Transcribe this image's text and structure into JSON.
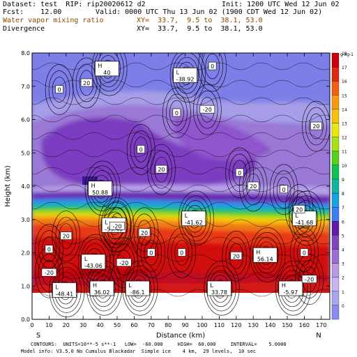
{
  "header": {
    "dataset": "Dataset: test  RIP: rip20020612 d2",
    "init": "Init: 1200 UTC Wed 12 Jun 02",
    "fcst": "Fcst:    12.00",
    "valid": "Valid: 0000 UTC Thu 13 Jun 02 (1900 CDT Wed 12 Jun 02)",
    "field1": "Water vapor mixing ratio",
    "xy1": "XY=  33.7,  9.5 to  38.1, 53.0",
    "field2": "Divergence",
    "xy2": "XY=  33.7,  9.5 to  38.1, 53.0"
  },
  "footer": {
    "line1": "CONTOURS:  UNITS=10**-5 s**-1   LOW=  -60.000     HIGH=  60.000     INTERVAL=    5.0000",
    "line2": "Model info: V3.5.0 No Cumulus Blackadar  Simple ice    4 km,  29 levels,  10 sec"
  },
  "colors": {
    "colorbar": [
      "#8a8cf0",
      "#a8a4ee",
      "#c8b4f0",
      "#b89ae2",
      "#9a6ed2",
      "#7e44c0",
      "#621aa8",
      "#3c7ef0",
      "#18a0e0",
      "#10b4a0",
      "#10c050",
      "#58d020",
      "#a8e018",
      "#e8e810",
      "#f8c010",
      "#f89810",
      "#f06010",
      "#e02810",
      "#c80010"
    ],
    "colorbar_labels": [
      "0",
      "1",
      "2",
      "3",
      "4",
      "5",
      "6",
      "7",
      "8",
      "9",
      "10",
      "11",
      "12",
      "13",
      "14",
      "15",
      "16",
      "17",
      "18"
    ],
    "colorbar_unit": "g kg-1"
  },
  "chart_data": {
    "type": "heatmap",
    "title": "Water vapor mixing ratio",
    "overlay": "Divergence",
    "xlabel": "Distance (km)",
    "ylabel": "Height (km)",
    "xlim": [
      0,
      175
    ],
    "ylim": [
      0,
      8
    ],
    "x_ticks": [
      "0",
      "10",
      "20",
      "30",
      "40",
      "50",
      "60",
      "70",
      "80",
      "90",
      "100",
      "110",
      "120",
      "130",
      "140",
      "150",
      "160",
      "170"
    ],
    "y_ticks": [
      "0.0",
      "1.0",
      "2.0",
      "3.0",
      "4.0",
      "5.0",
      "6.0",
      "7.0",
      "8.0"
    ],
    "endpoint_left": "S",
    "endpoint_right": "N",
    "extrema": [
      {
        "type": "H",
        "value": "40",
        "x": 44,
        "y": 7.5
      },
      {
        "type": "L",
        "value": "-38.92",
        "x": 90,
        "y": 7.3
      },
      {
        "type": "H",
        "value": "50.88",
        "x": 40,
        "y": 3.9
      },
      {
        "type": "L",
        "value": "-59.46",
        "x": 48,
        "y": 2.8
      },
      {
        "type": "L",
        "value": "-41.62",
        "x": 95,
        "y": 3.0
      },
      {
        "type": "L",
        "value": "-41.68",
        "x": 160,
        "y": 3.0
      },
      {
        "type": "L",
        "value": "-43.06",
        "x": 36,
        "y": 1.7
      },
      {
        "type": "H",
        "value": "56.14",
        "x": 137,
        "y": 1.9
      },
      {
        "type": "L",
        "value": "-48.41",
        "x": 19,
        "y": 0.85
      },
      {
        "type": "H",
        "value": "36.02",
        "x": 41,
        "y": 0.9
      },
      {
        "type": "L",
        "value": "-86.1",
        "x": 62,
        "y": 0.9
      },
      {
        "type": "L",
        "value": "33.78",
        "x": 110,
        "y": 0.9
      },
      {
        "type": "H",
        "value": "-5.97",
        "x": 152,
        "y": 0.9
      }
    ],
    "contour_labels": [
      {
        "value": "20",
        "x": 32,
        "y": 7.1
      },
      {
        "value": "0",
        "x": 64,
        "y": 5.1
      },
      {
        "value": "0",
        "x": 85,
        "y": 6.2
      },
      {
        "value": "0",
        "x": 106,
        "y": 7.6
      },
      {
        "value": "-20",
        "x": 103,
        "y": 6.3
      },
      {
        "value": "20",
        "x": 76,
        "y": 4.5
      },
      {
        "value": "0",
        "x": 122,
        "y": 4.4
      },
      {
        "value": "20",
        "x": 167,
        "y": 5.8
      },
      {
        "value": "20",
        "x": 130,
        "y": 4.0
      },
      {
        "value": "0",
        "x": 148,
        "y": 3.9
      },
      {
        "value": "20",
        "x": 157,
        "y": 3.3
      },
      {
        "value": "20",
        "x": 20,
        "y": 2.5
      },
      {
        "value": "-20",
        "x": 50,
        "y": 2.8
      },
      {
        "value": "20",
        "x": 66,
        "y": 2.6
      },
      {
        "value": "-20",
        "x": 54,
        "y": 1.7
      },
      {
        "value": "0",
        "x": 70,
        "y": 2.0
      },
      {
        "value": "0",
        "x": 88,
        "y": 2.0
      },
      {
        "value": "20",
        "x": 120,
        "y": 1.9
      },
      {
        "value": "0",
        "x": 10,
        "y": 2.1
      },
      {
        "value": "-20",
        "x": 10,
        "y": 1.4
      },
      {
        "value": "0",
        "x": 160,
        "y": 2.0
      },
      {
        "value": "-20",
        "x": 163,
        "y": 1.2
      },
      {
        "value": "0",
        "x": 16,
        "y": 6.9
      }
    ]
  }
}
